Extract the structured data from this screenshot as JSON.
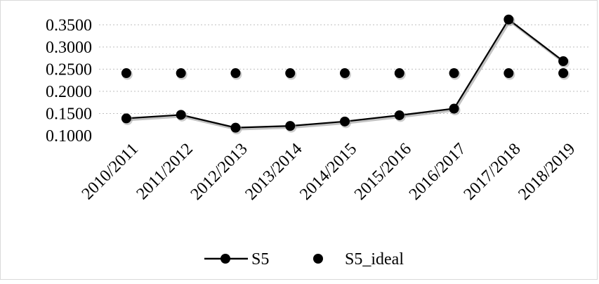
{
  "chart_data": {
    "type": "line",
    "categories": [
      "2010/2011",
      "2011/2012",
      "2012/2013",
      "2013/2014",
      "2014/2015",
      "2015/2016",
      "2016/2017",
      "2017/2018",
      "2018/2019"
    ],
    "series": [
      {
        "name": "S5",
        "values": [
          0.139,
          0.147,
          0.118,
          0.122,
          0.132,
          0.146,
          0.161,
          0.362,
          0.268
        ],
        "style": "line-with-markers",
        "color": "#000000"
      },
      {
        "name": "S5_ideal",
        "values": [
          0.241,
          0.241,
          0.241,
          0.241,
          0.241,
          0.241,
          0.241,
          0.241,
          0.241
        ],
        "style": "markers-only",
        "color": "#000000"
      }
    ],
    "y_ticks": [
      "0.1000",
      "0.1500",
      "0.2000",
      "0.2500",
      "0.3000",
      "0.3500"
    ],
    "ylim": [
      0.1,
      0.36
    ],
    "grid": true,
    "grid_style": "dotted",
    "legend_placement": "bottom"
  }
}
